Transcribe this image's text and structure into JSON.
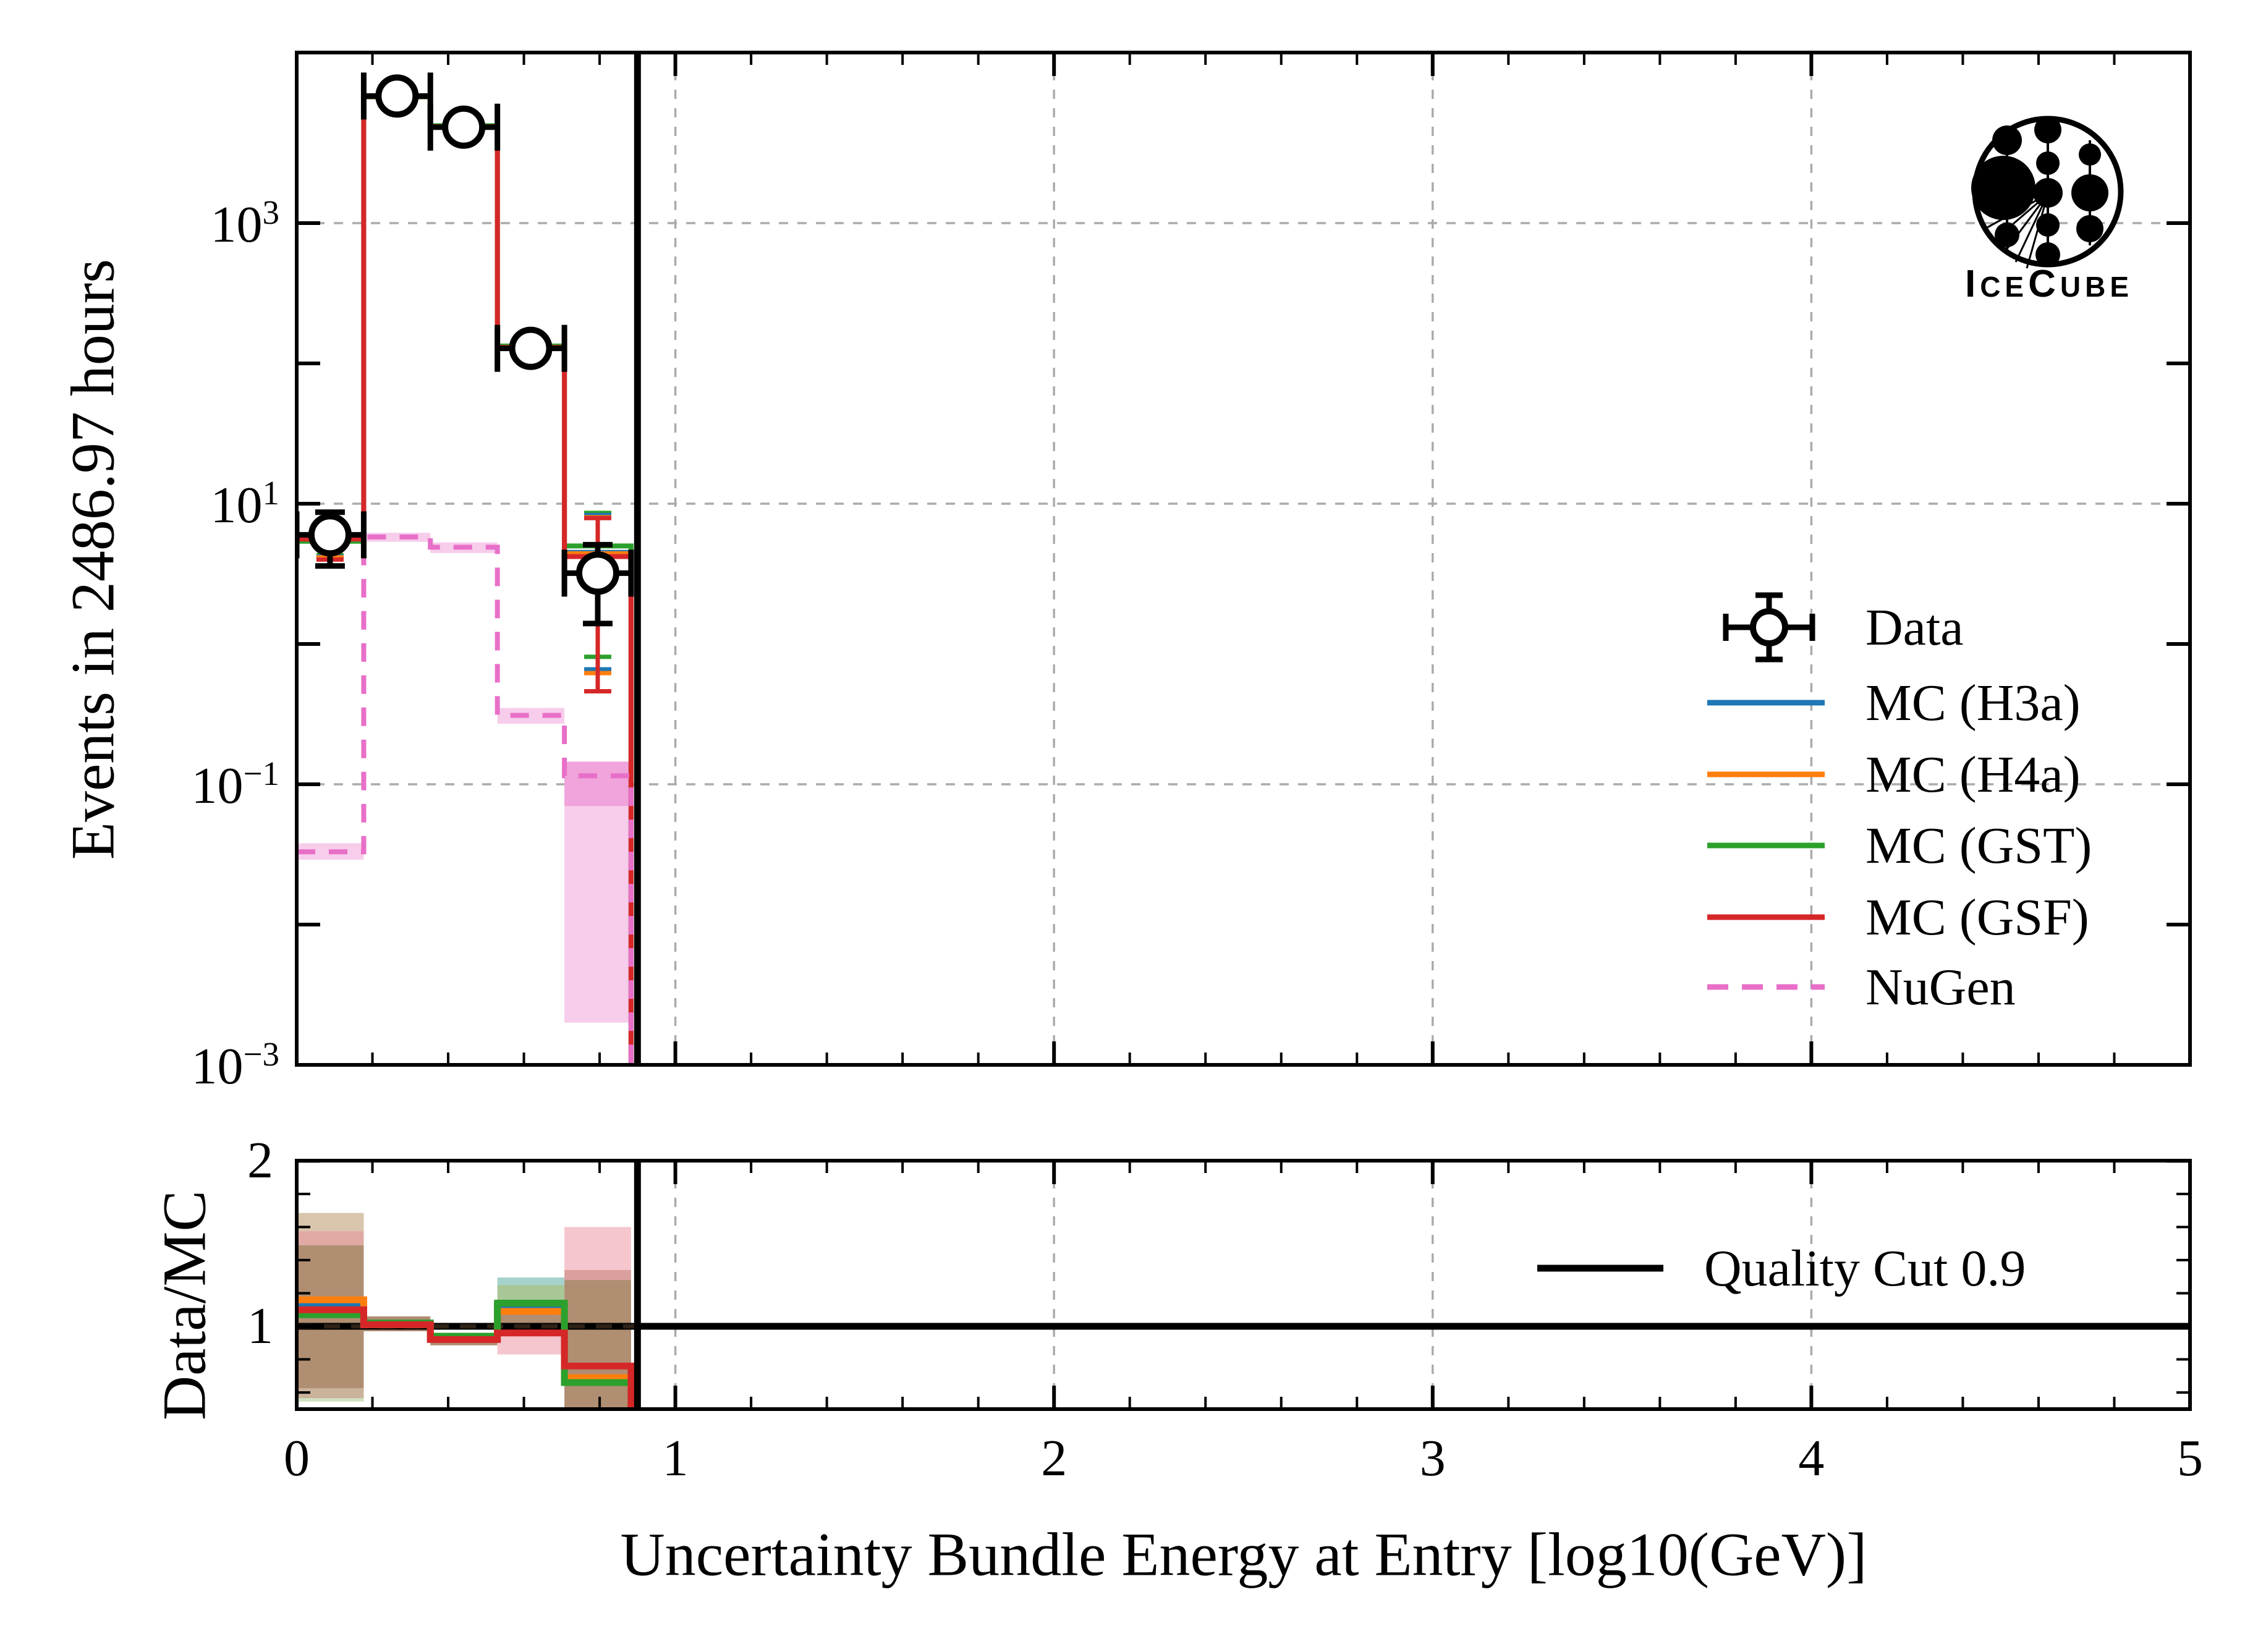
{
  "chart_data": {
    "type": "line",
    "title": "",
    "xlabel": "Uncertainty Bundle Energy at Entry [log10(GeV)]",
    "ylabel_top": "Events in 2486.97 hours",
    "ylabel_ratio": "Data/MC",
    "xlim": [
      0,
      5
    ],
    "x_tick_labels": [
      "0",
      "1",
      "2",
      "3",
      "4",
      "5"
    ],
    "x_major_ticks": [
      0,
      1,
      2,
      3,
      4,
      5
    ],
    "x_minor_step": 0.2,
    "x_gridlines": [
      1,
      2,
      3,
      4
    ],
    "ylim_top_log10": [
      -3,
      4.2
    ],
    "y_top_tick_exponents": [
      "3",
      "1",
      "−1",
      "−3"
    ],
    "y_top_tick_exp_values": [
      3,
      1,
      -1,
      -3
    ],
    "y_top_decade_ticks": [
      3,
      2,
      1,
      0,
      -1,
      -2,
      -3
    ],
    "y_top_gridline_exponents": [
      3,
      1,
      -1
    ],
    "y_top_tick_base": "10",
    "ylim_ratio": [
      0.5,
      2.0
    ],
    "y_ratio_major_ticks": [
      1,
      2
    ],
    "y_ratio_tick_labels": [
      "1",
      "2"
    ],
    "y_ratio_minor_step": 0.2,
    "quality_cut_x": 0.9,
    "ratio_reference": 1.0,
    "bin_edges": [
      0,
      0.177,
      0.353,
      0.53,
      0.707,
      0.883
    ],
    "bin_centers": [
      0.088,
      0.265,
      0.441,
      0.618,
      0.795
    ],
    "series": [
      {
        "name": "MC (H3a)",
        "color": "#1f77b4",
        "dashed": false,
        "events": [
          5.5,
          7930,
          4890,
          131,
          4.5
        ],
        "ratio": [
          1.13,
          1.01,
          0.93,
          1.12,
          0.68
        ]
      },
      {
        "name": "MC (H4a)",
        "color": "#ff7f0e",
        "dashed": false,
        "events": [
          5.7,
          7960,
          4900,
          132,
          4.4
        ],
        "ratio": [
          1.16,
          1.01,
          0.93,
          1.09,
          0.69
        ]
      },
      {
        "name": "MC (GST)",
        "color": "#2ca02c",
        "dashed": false,
        "events": [
          5.4,
          7990,
          4950,
          133,
          5.0
        ],
        "ratio": [
          1.07,
          1.02,
          0.94,
          1.14,
          0.66
        ]
      },
      {
        "name": "MC (GSF)",
        "color": "#d62728",
        "dashed": false,
        "events": [
          5.6,
          8010,
          4870,
          130,
          4.2
        ],
        "ratio": [
          1.1,
          1.01,
          0.92,
          0.96,
          0.76
        ]
      },
      {
        "name": "NuGen",
        "color": "#e86fc8",
        "dashed": true,
        "events": [
          0.033,
          5.8,
          4.9,
          0.31,
          0.115
        ],
        "band_lo": [
          0.029,
          5.35,
          4.45,
          0.27,
          0.002
        ],
        "band_hi": [
          0.038,
          6.2,
          5.3,
          0.35,
          0.145
        ],
        "inner_band": {
          "bin": 4,
          "lo": 0.07,
          "hi": 0.145
        }
      }
    ],
    "data_points": {
      "name": "Data",
      "color": "#000000",
      "x": [
        0.088,
        0.265,
        0.441,
        0.618,
        0.795
      ],
      "y": [
        6.0,
        8050,
        4830,
        128,
        3.2
      ],
      "y_lo": [
        3.6,
        7870,
        4700,
        117,
        1.4
      ],
      "y_hi": [
        8.7,
        8230,
        4960,
        140,
        5.1
      ]
    },
    "mc_stat_errors": [
      {
        "x": 0.088,
        "bars": [
          {
            "color": "#2ca02c",
            "lo": 4.3,
            "hi": 7.1
          },
          {
            "color": "#1f77b4",
            "lo": 4.2,
            "hi": 7.05
          },
          {
            "color": "#ff7f0e",
            "lo": 4.15,
            "hi": 7.0
          },
          {
            "color": "#d62728",
            "lo": 4.0,
            "hi": 6.9
          }
        ]
      },
      {
        "x": 0.795,
        "bars": [
          {
            "color": "#2ca02c",
            "lo": 0.81,
            "hi": 8.6
          },
          {
            "color": "#1f77b4",
            "lo": 0.66,
            "hi": 8.3
          },
          {
            "color": "#ff7f0e",
            "lo": 0.62,
            "hi": 8.0
          },
          {
            "color": "#d62728",
            "lo": 0.46,
            "hi": 7.9
          }
        ]
      }
    ],
    "ratio_bands": [
      {
        "x0": 0,
        "x1": 0.177,
        "lo": 1.575,
        "hi": 1.685,
        "color": "#d8c5ac"
      },
      {
        "x0": 0,
        "x1": 0.177,
        "lo": 1.49,
        "hi": 1.575,
        "color": "#e0a9a4"
      },
      {
        "x0": 0,
        "x1": 0.177,
        "lo": 0.625,
        "hi": 1.49,
        "color": "#b08e72"
      },
      {
        "x0": 0,
        "x1": 0.177,
        "lo": 0.565,
        "hi": 0.625,
        "color": "#cbb29a"
      },
      {
        "x0": 0,
        "x1": 0.177,
        "lo": 0.545,
        "hi": 0.565,
        "color": "#cfe3c3"
      },
      {
        "x0": 0.177,
        "x1": 0.353,
        "lo": 0.97,
        "hi": 1.06,
        "color": "#b08e72"
      },
      {
        "x0": 0.353,
        "x1": 0.53,
        "lo": 0.885,
        "hi": 0.96,
        "color": "#b08e72"
      },
      {
        "x0": 0.53,
        "x1": 0.707,
        "lo": 1.25,
        "hi": 1.295,
        "color": "#a6d3cd"
      },
      {
        "x0": 0.53,
        "x1": 0.707,
        "lo": 1.145,
        "hi": 1.25,
        "color": "#a9c697"
      },
      {
        "x0": 0.53,
        "x1": 0.707,
        "lo": 0.96,
        "hi": 1.145,
        "color": "#b08e72"
      },
      {
        "x0": 0.53,
        "x1": 0.707,
        "lo": 0.83,
        "hi": 0.96,
        "color": "#f5c6ce"
      },
      {
        "x0": 0.707,
        "x1": 0.883,
        "lo": 1.34,
        "hi": 1.6,
        "color": "#f5c6ce"
      },
      {
        "x0": 0.707,
        "x1": 0.883,
        "lo": 1.28,
        "hi": 1.34,
        "color": "#db9f9e"
      },
      {
        "x0": 0.707,
        "x1": 0.883,
        "lo": 0.4,
        "hi": 1.28,
        "color": "#b08e72"
      }
    ],
    "legend_position": "center right",
    "grid": true
  },
  "legend_top": {
    "items": [
      {
        "label": "Data",
        "type": "marker",
        "color": "#000000"
      },
      {
        "label": "MC (H3a)",
        "type": "line",
        "color": "#1f77b4"
      },
      {
        "label": "MC (H4a)",
        "type": "line",
        "color": "#ff7f0e"
      },
      {
        "label": "MC (GST)",
        "type": "line",
        "color": "#2ca02c"
      },
      {
        "label": "MC (GSF)",
        "type": "line",
        "color": "#d62728"
      },
      {
        "label": "NuGen",
        "type": "dashed-line",
        "color": "#e86fc8"
      }
    ]
  },
  "legend_ratio": {
    "label": "Quality Cut 0.9",
    "color": "#000000"
  },
  "logo": {
    "p1": "I",
    "p2": "CE",
    "p3": "C",
    "p4": "UBE"
  },
  "colors": {
    "frame": "#000000",
    "grid": "#ababab",
    "nugen_band_outer": "#f7cdeb",
    "nugen_band_inner": "#ef94d6",
    "cut_line": "#000000",
    "ratio_ref_line": "#000000"
  }
}
